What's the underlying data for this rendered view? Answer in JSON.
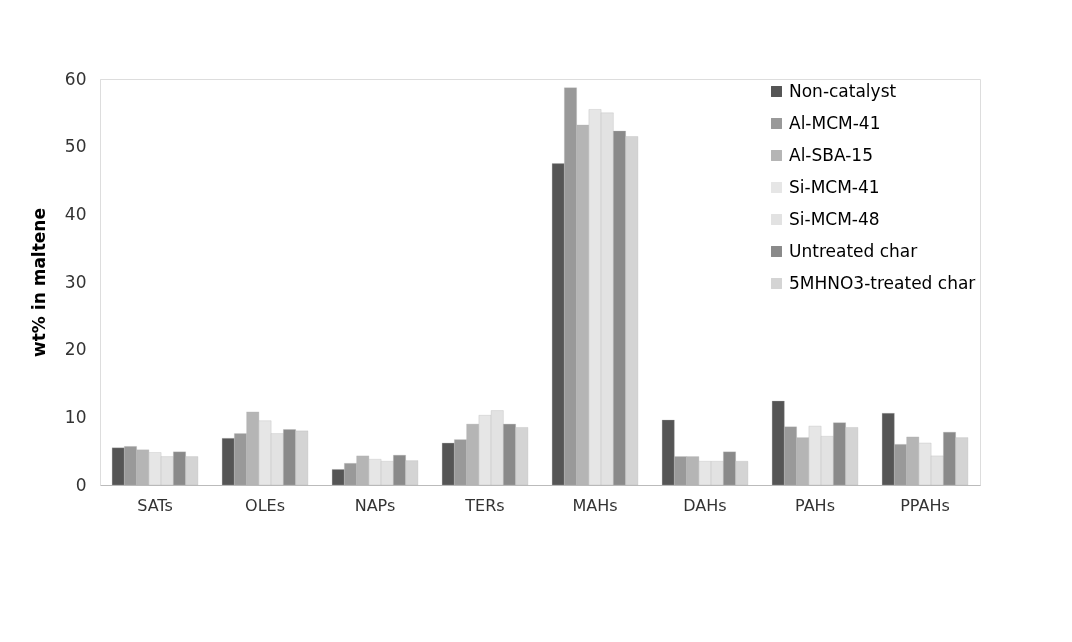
{
  "chart_data": {
    "type": "bar",
    "ylabel": "wt% in maltene",
    "categories": [
      "SATs",
      "OLEs",
      "NAPs",
      "TERs",
      "MAHs",
      "DAHs",
      "PAHs",
      "PPAHs"
    ],
    "series": [
      {
        "name": "Non-catalyst",
        "color": "#555555",
        "values": [
          5.5,
          6.9,
          2.3,
          6.2,
          47.5,
          9.6,
          12.4,
          10.6
        ]
      },
      {
        "name": "Al-MCM-41",
        "color": "#999999",
        "values": [
          5.7,
          7.6,
          3.2,
          6.7,
          58.7,
          4.2,
          8.6,
          6.0
        ]
      },
      {
        "name": "Al-SBA-15",
        "color": "#b5b5b5",
        "values": [
          5.2,
          10.8,
          4.3,
          9.0,
          53.2,
          4.2,
          7.0,
          7.1
        ]
      },
      {
        "name": "Si-MCM-41",
        "color": "#e6e6e6",
        "values": [
          4.8,
          9.5,
          3.8,
          10.3,
          55.5,
          3.5,
          8.7,
          6.2
        ]
      },
      {
        "name": "Si-MCM-48",
        "color": "#e2e2e2",
        "values": [
          4.2,
          7.6,
          3.5,
          11.0,
          55.0,
          3.5,
          7.2,
          4.3
        ]
      },
      {
        "name": "Untreated char",
        "color": "#8a8a8a",
        "values": [
          4.9,
          8.2,
          4.4,
          9.0,
          52.3,
          4.9,
          9.2,
          7.8
        ]
      },
      {
        "name": "5MHNO3-treated char",
        "color": "#d4d4d4",
        "values": [
          4.2,
          8.0,
          3.6,
          8.5,
          51.5,
          3.5,
          8.5,
          7.0
        ]
      }
    ],
    "ylim": [
      0,
      60
    ],
    "yticks": [
      0,
      10,
      20,
      30,
      40,
      50,
      60
    ],
    "grid": false,
    "legend": "top right"
  }
}
